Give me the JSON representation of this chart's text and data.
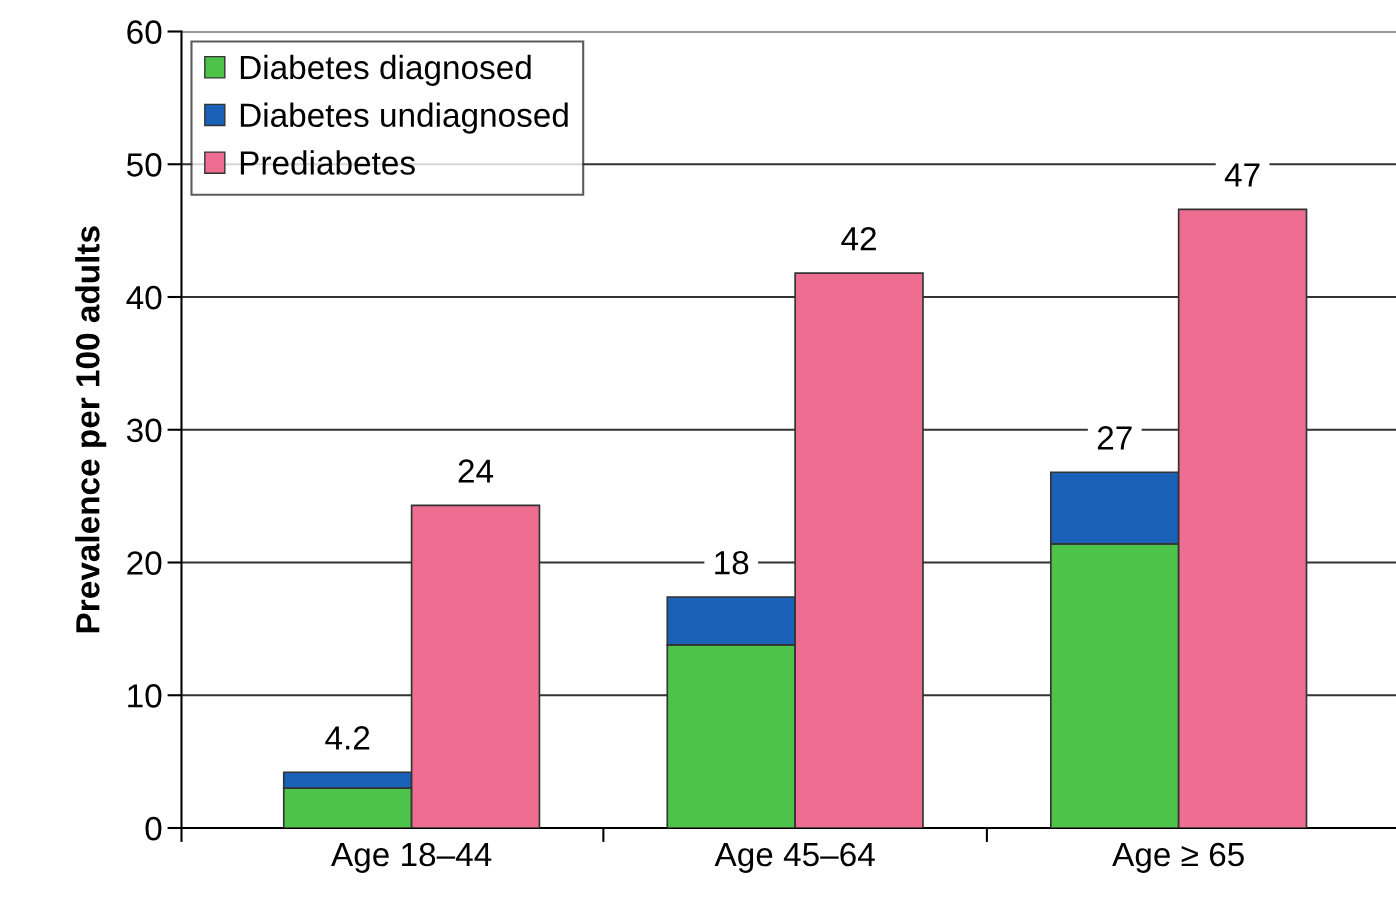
{
  "chart_data": {
    "type": "bar",
    "ylabel": "Prevalence per 100 adults",
    "categories": [
      "Age 18–44",
      null,
      null,
      "Age 45–64",
      null,
      null,
      "Age ≥ 65",
      null
    ],
    "stacked": true,
    "series": [
      {
        "name": "Diabetes diagnosed",
        "color": "#4dc34a",
        "values": [
          3.0,
          null,
          null,
          13.8,
          null,
          null,
          21.4,
          null
        ]
      },
      {
        "name": "Diabetes undiagnosed",
        "color": "#1a62b8",
        "values": [
          1.2,
          null,
          null,
          3.6,
          null,
          null,
          5.4,
          null
        ]
      },
      {
        "name": "Prediabetes",
        "color": "#ee6e92",
        "values": [
          null,
          24.3,
          null,
          null,
          41.8,
          null,
          null,
          46.6
        ],
        "value_labels": [
          null,
          "24",
          null,
          null,
          "42",
          null,
          null,
          "47"
        ]
      }
    ],
    "totals": [
      "4.2",
      null,
      null,
      "18",
      null,
      null,
      "27",
      null
    ],
    "ylim": [
      0,
      60
    ],
    "yticks": [
      0,
      10,
      20,
      30,
      40,
      50,
      60
    ],
    "grid": "y",
    "legend": "top left"
  }
}
